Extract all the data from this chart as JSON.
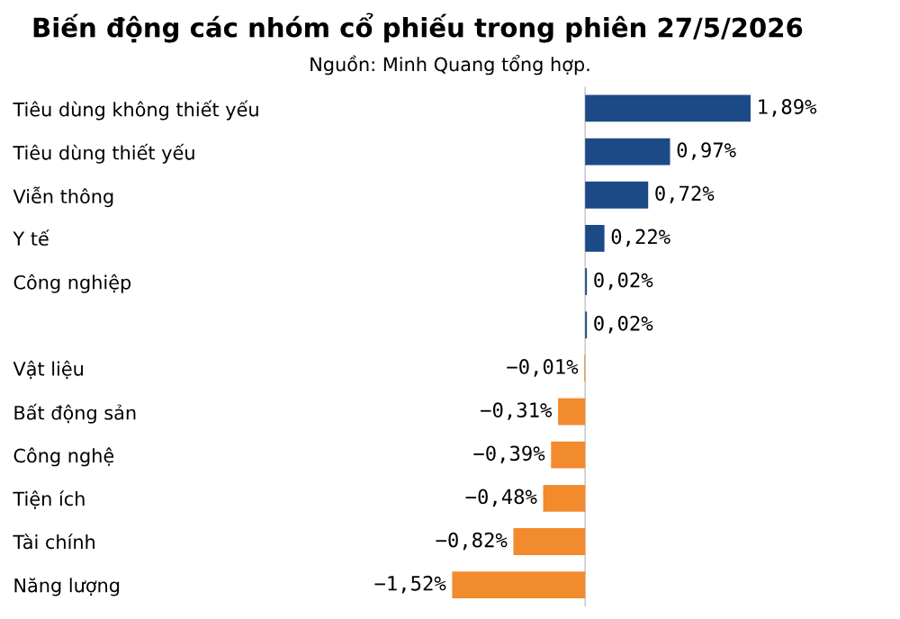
{
  "chart_data": {
    "type": "bar",
    "orientation": "horizontal",
    "title": "Biến động các nhóm cổ phiếu trong phiên 27/5/2026",
    "subtitle": "Nguồn: Minh Quang tổng hợp.",
    "categories": [
      "Tiêu dùng không thiết yếu",
      "Tiêu dùng thiết yếu",
      "Viễn thông",
      "Y tế",
      "Công nghiệp",
      null,
      "Vật liệu",
      "Bất động sản",
      "Công nghệ",
      "Tiện ích",
      "Tài chính",
      "Năng lượng"
    ],
    "values": [
      1.89,
      0.97,
      0.72,
      0.22,
      0.02,
      0.02,
      -0.01,
      -0.31,
      -0.39,
      -0.48,
      -0.82,
      -1.52
    ],
    "colors": [
      "#1b4a87",
      "#1b4a87",
      "#1b4a87",
      "#1b4a87",
      "#1b4a87",
      "#1b4a87",
      "#f28a2e",
      "#f28a2e",
      "#f28a2e",
      "#f28a2e",
      "#f28a2e",
      "#f28a2e"
    ],
    "value_labels": [
      "1,89%",
      "0,97%",
      "0,72%",
      "0,22%",
      "0,02%",
      "0,02%",
      "−0,01%",
      "−0,31%",
      "−0,39%",
      "−0,48%",
      "−0,82%",
      "−1,52%"
    ],
    "grid": false,
    "legend": false
  }
}
